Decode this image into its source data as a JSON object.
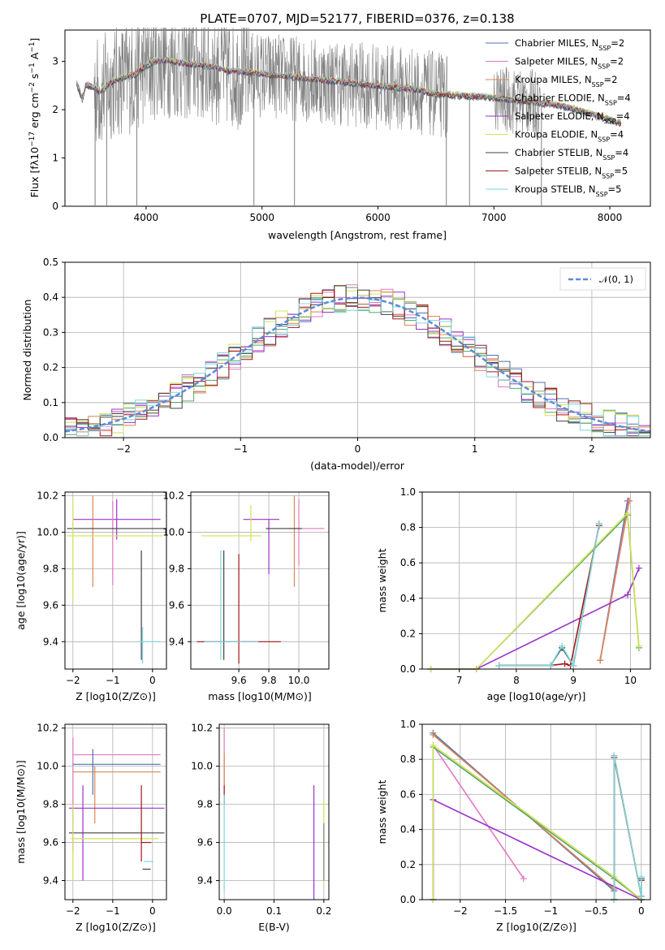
{
  "chart_data": [
    {
      "type": "line",
      "title": "PLATE=0707, MJD=52177, FIBERID=0376, z=0.138",
      "xlabel": "wavelength [Angstrom, rest frame]",
      "ylabel": "Flux [f$_\\lambda$10$^{-17}$ erg cm$^{-2}$ s$^{-1}$ A$^{-1}$]",
      "ylabel_text": "Flux [fλ10",
      "ylabel_sup1": "−17",
      "ylabel_mid": " erg cm",
      "ylabel_sup2": "−2",
      "ylabel_mid2": " s",
      "ylabel_sup3": "−1",
      "ylabel_end": " A",
      "ylabel_sup4": "−1",
      "ylabel_close": "]",
      "xlim": [
        3300,
        8350
      ],
      "ylim": [
        0,
        3.65
      ],
      "xticks": [
        4000,
        5000,
        6000,
        7000,
        8000
      ],
      "yticks": [
        0,
        1,
        2,
        3
      ],
      "grid": false,
      "legend_position": "top-right",
      "legend_prefix": [
        "Chabrier MILES, N",
        "Salpeter MILES, N",
        "Kroupa MILES, N",
        "Chabrier ELODIE, N",
        "Salpeter ELODIE, N",
        "Kroupa ELODIE, N",
        "Chabrier STELIB, N",
        "Salpeter STELIB, N",
        "Kroupa STELIB, N"
      ],
      "legend_sub": "SSP",
      "legend_suffix": [
        "=2",
        "=2",
        "=2",
        "=4",
        "=4",
        "=4",
        "=4",
        "=5",
        "=5"
      ],
      "series": [
        {
          "name": "data",
          "color": "#808080"
        },
        {
          "name": "Chabrier MILES, N_SSP=2",
          "color": "#4c72b0"
        },
        {
          "name": "Salpeter MILES, N_SSP=2",
          "color": "#e377c2"
        },
        {
          "name": "Kroupa MILES, N_SSP=2",
          "color": "#dd8452"
        },
        {
          "name": "Chabrier ELODIE, N_SSP=4",
          "color": "#55a868"
        },
        {
          "name": "Salpeter ELODIE, N_SSP=4",
          "color": "#9932cc"
        },
        {
          "name": "Kroupa ELODIE, N_SSP=4",
          "color": "#d4e157"
        },
        {
          "name": "Chabrier STELIB, N_SSP=4",
          "color": "#404040"
        },
        {
          "name": "Salpeter STELIB, N_SSP=5",
          "color": "#a01818"
        },
        {
          "name": "Kroupa STELIB, N_SSP=5",
          "color": "#7fd8dc"
        }
      ],
      "continuum": [
        [
          3400,
          2.55
        ],
        [
          3450,
          2.2
        ],
        [
          3480,
          2.5
        ],
        [
          3550,
          2.45
        ],
        [
          3600,
          2.35
        ],
        [
          3700,
          2.55
        ],
        [
          3800,
          2.65
        ],
        [
          3900,
          2.7
        ],
        [
          4000,
          2.9
        ],
        [
          4100,
          3.0
        ],
        [
          4200,
          3.0
        ],
        [
          4300,
          2.95
        ],
        [
          4500,
          2.9
        ],
        [
          4700,
          2.8
        ],
        [
          4900,
          2.75
        ],
        [
          5100,
          2.7
        ],
        [
          5300,
          2.65
        ],
        [
          5500,
          2.6
        ],
        [
          5700,
          2.55
        ],
        [
          5900,
          2.5
        ],
        [
          6100,
          2.45
        ],
        [
          6300,
          2.42
        ],
        [
          6500,
          2.3
        ],
        [
          6700,
          2.28
        ],
        [
          6900,
          2.25
        ],
        [
          7100,
          2.2
        ],
        [
          7300,
          2.15
        ],
        [
          7500,
          2.1
        ],
        [
          7700,
          2.0
        ],
        [
          7900,
          1.85
        ],
        [
          8100,
          1.7
        ]
      ],
      "dropouts": [
        3560,
        3660,
        3920,
        4930,
        5280,
        6590,
        6790,
        7410
      ]
    },
    {
      "type": "line",
      "xlabel": "(data-model)/error",
      "ylabel": "Normed distribution",
      "xlim": [
        -2.5,
        2.5
      ],
      "ylim": [
        0,
        0.5
      ],
      "xticks": [
        -2,
        -1,
        0,
        1,
        2
      ],
      "yticks": [
        0.0,
        0.1,
        0.2,
        0.3,
        0.4,
        0.5
      ],
      "grid": true,
      "legend_position": "top-right",
      "legend": [
        "𝒩(0, 1)"
      ],
      "reference_curve": {
        "name": "𝒩(0, 1)",
        "mean": 0,
        "sigma": 1,
        "color": "#5b8bd8"
      }
    },
    {
      "type": "scatter",
      "xlabel": "Z [log10(Z/Z⊙)]",
      "ylabel": "age  [log10(age/yr)]",
      "xlim": [
        -2.2,
        0.35
      ],
      "ylim": [
        9.25,
        10.22
      ],
      "xticks": [
        -2,
        -1,
        0
      ],
      "yticks": [
        9.4,
        9.6,
        9.8,
        10.0,
        10.2
      ],
      "grid": true
    },
    {
      "type": "scatter",
      "xlabel": "mass [log10(M/M⊙)]",
      "ylabel": "",
      "xlim": [
        9.28,
        10.2
      ],
      "ylim": [
        9.25,
        10.22
      ],
      "xticks": [
        9.6,
        9.8,
        10.0
      ],
      "yticks": [
        9.4,
        9.6,
        9.8,
        10.0,
        10.2
      ],
      "grid": true
    },
    {
      "type": "line",
      "xlabel": "age  [log10(age/yr)]",
      "ylabel": "mass weight",
      "xlim": [
        6.35,
        10.35
      ],
      "ylim": [
        0,
        1.0
      ],
      "xticks": [
        7,
        8,
        9,
        10
      ],
      "yticks": [
        0.0,
        0.2,
        0.4,
        0.6,
        0.8,
        1.0
      ],
      "grid": true,
      "series": [
        {
          "name": "Chabrier MILES, N_SSP=2",
          "x": [
            9.47,
            9.95
          ],
          "y": [
            0.05,
            0.95
          ]
        },
        {
          "name": "Salpeter MILES, N_SSP=2",
          "x": [
            9.47,
            9.97
          ],
          "y": [
            0.05,
            0.95
          ]
        },
        {
          "name": "Kroupa MILES, N_SSP=2",
          "x": [
            9.47,
            9.98
          ],
          "y": [
            0.05,
            0.95
          ]
        },
        {
          "name": "Chabrier ELODIE, N_SSP=4",
          "x": [
            6.5,
            7.3,
            9.95,
            10.15
          ],
          "y": [
            0.0,
            0.0,
            0.87,
            0.12
          ]
        },
        {
          "name": "Salpeter ELODIE, N_SSP=4",
          "x": [
            6.5,
            7.3,
            9.95,
            10.15
          ],
          "y": [
            0.0,
            0.0,
            0.42,
            0.57
          ]
        },
        {
          "name": "Kroupa ELODIE, N_SSP=4",
          "x": [
            6.5,
            7.3,
            9.95,
            10.15
          ],
          "y": [
            0.0,
            0.0,
            0.88,
            0.13
          ]
        },
        {
          "name": "Chabrier STELIB, N_SSP=4",
          "x": [
            7.7,
            8.6,
            8.8,
            9.0,
            9.45
          ],
          "y": [
            0.02,
            0.02,
            0.12,
            0.02,
            0.82
          ]
        },
        {
          "name": "Salpeter STELIB, N_SSP=5",
          "x": [
            7.7,
            8.6,
            8.85,
            8.95,
            9.45
          ],
          "y": [
            0.02,
            0.02,
            0.03,
            0.02,
            0.81
          ]
        },
        {
          "name": "Kroupa STELIB, N_SSP=5",
          "x": [
            7.7,
            8.6,
            8.8,
            9.0,
            9.45
          ],
          "y": [
            0.02,
            0.02,
            0.13,
            0.02,
            0.82
          ]
        }
      ]
    },
    {
      "type": "scatter",
      "xlabel": "Z [log10(Z/Z⊙)]",
      "ylabel": "mass [log10(M/M⊙)]",
      "xlim": [
        -2.2,
        0.35
      ],
      "ylim": [
        9.3,
        10.22
      ],
      "xticks": [
        -2,
        -1,
        0
      ],
      "yticks": [
        9.4,
        9.6,
        9.8,
        10.0,
        10.2
      ],
      "grid": true
    },
    {
      "type": "scatter",
      "xlabel": "E(B-V)",
      "ylabel": "",
      "xlim": [
        -0.01,
        0.21
      ],
      "ylim": [
        9.3,
        10.22
      ],
      "xticks": [
        0.0,
        0.1,
        0.2
      ],
      "yticks": [
        9.4,
        9.6,
        9.8,
        10.0,
        10.2
      ],
      "grid": true
    },
    {
      "type": "line",
      "xlabel": "Z [log10(Z/Z⊙)]",
      "ylabel": "mass weight",
      "xlim": [
        -2.42,
        0.1
      ],
      "ylim": [
        0,
        1.0
      ],
      "xticks": [
        -2.0,
        -1.5,
        -1.0,
        -0.5,
        0.0
      ],
      "yticks": [
        0.0,
        0.2,
        0.4,
        0.6,
        0.8,
        1.0
      ],
      "grid": true,
      "series": [
        {
          "name": "Chabrier MILES, N_SSP=2",
          "x": [
            -2.3,
            -0.3
          ],
          "y": [
            0.95,
            0.05
          ]
        },
        {
          "name": "Salpeter MILES, N_SSP=2",
          "x": [
            -2.3,
            -1.3
          ],
          "y": [
            0.88,
            0.12
          ]
        },
        {
          "name": "Kroupa MILES, N_SSP=2",
          "x": [
            -2.3,
            -0.3
          ],
          "y": [
            0.94,
            0.06
          ]
        },
        {
          "name": "Chabrier ELODIE, N_SSP=4",
          "x": [
            -2.3,
            -2.3,
            -0.3,
            0.0
          ],
          "y": [
            0.0,
            0.87,
            0.12,
            0.0
          ]
        },
        {
          "name": "Salpeter ELODIE, N_SSP=4",
          "x": [
            -2.3,
            -2.3,
            0.0,
            0.0
          ],
          "y": [
            0.0,
            0.57,
            0.0,
            0.0
          ]
        },
        {
          "name": "Kroupa ELODIE, N_SSP=4",
          "x": [
            -2.3,
            -2.3,
            -0.3,
            0.0
          ],
          "y": [
            0.0,
            0.88,
            0.13,
            0.0
          ]
        },
        {
          "name": "Chabrier STELIB, N_SSP=4",
          "x": [
            -0.3,
            -0.3,
            0.0,
            0.0
          ],
          "y": [
            0.0,
            0.82,
            0.02,
            0.12
          ]
        },
        {
          "name": "Salpeter STELIB, N_SSP=5",
          "x": [
            -0.3,
            -0.3,
            0.0,
            0.0
          ],
          "y": [
            0.0,
            0.81,
            0.02,
            0.11
          ]
        },
        {
          "name": "Kroupa STELIB, N_SSP=5",
          "x": [
            -0.3,
            -0.3,
            0.0,
            0.0
          ],
          "y": [
            0.0,
            0.82,
            0.02,
            0.13
          ]
        }
      ]
    }
  ],
  "errorbars": {
    "age_vs_Z": [
      {
        "color": "#9932cc",
        "x": -0.9,
        "xerr": 1.1,
        "y": 10.07,
        "yerr": 0.09
      },
      {
        "color": "#dd8452",
        "x": -0.9,
        "xerr": 1.1,
        "y": 10.02,
        "yerr": 0.1
      },
      {
        "color": "#808080",
        "x": -0.9,
        "xerr": 1.1,
        "y": 10.02,
        "yerr": 0.1
      },
      {
        "color": "#d4e157",
        "x": -0.9,
        "xerr": 1.2,
        "y": 9.98,
        "yerr": 0.1
      },
      {
        "color": "#404040",
        "x": -0.28,
        "xerr": 0.06,
        "y": 9.4,
        "yerr": 0.5
      },
      {
        "color": "#7fd8dc",
        "x": -0.2,
        "xerr": 0.2,
        "y": 9.4,
        "yerr": 0.1
      }
    ]
  },
  "legend_small": {
    "normal": "𝒩(0, 1)"
  }
}
